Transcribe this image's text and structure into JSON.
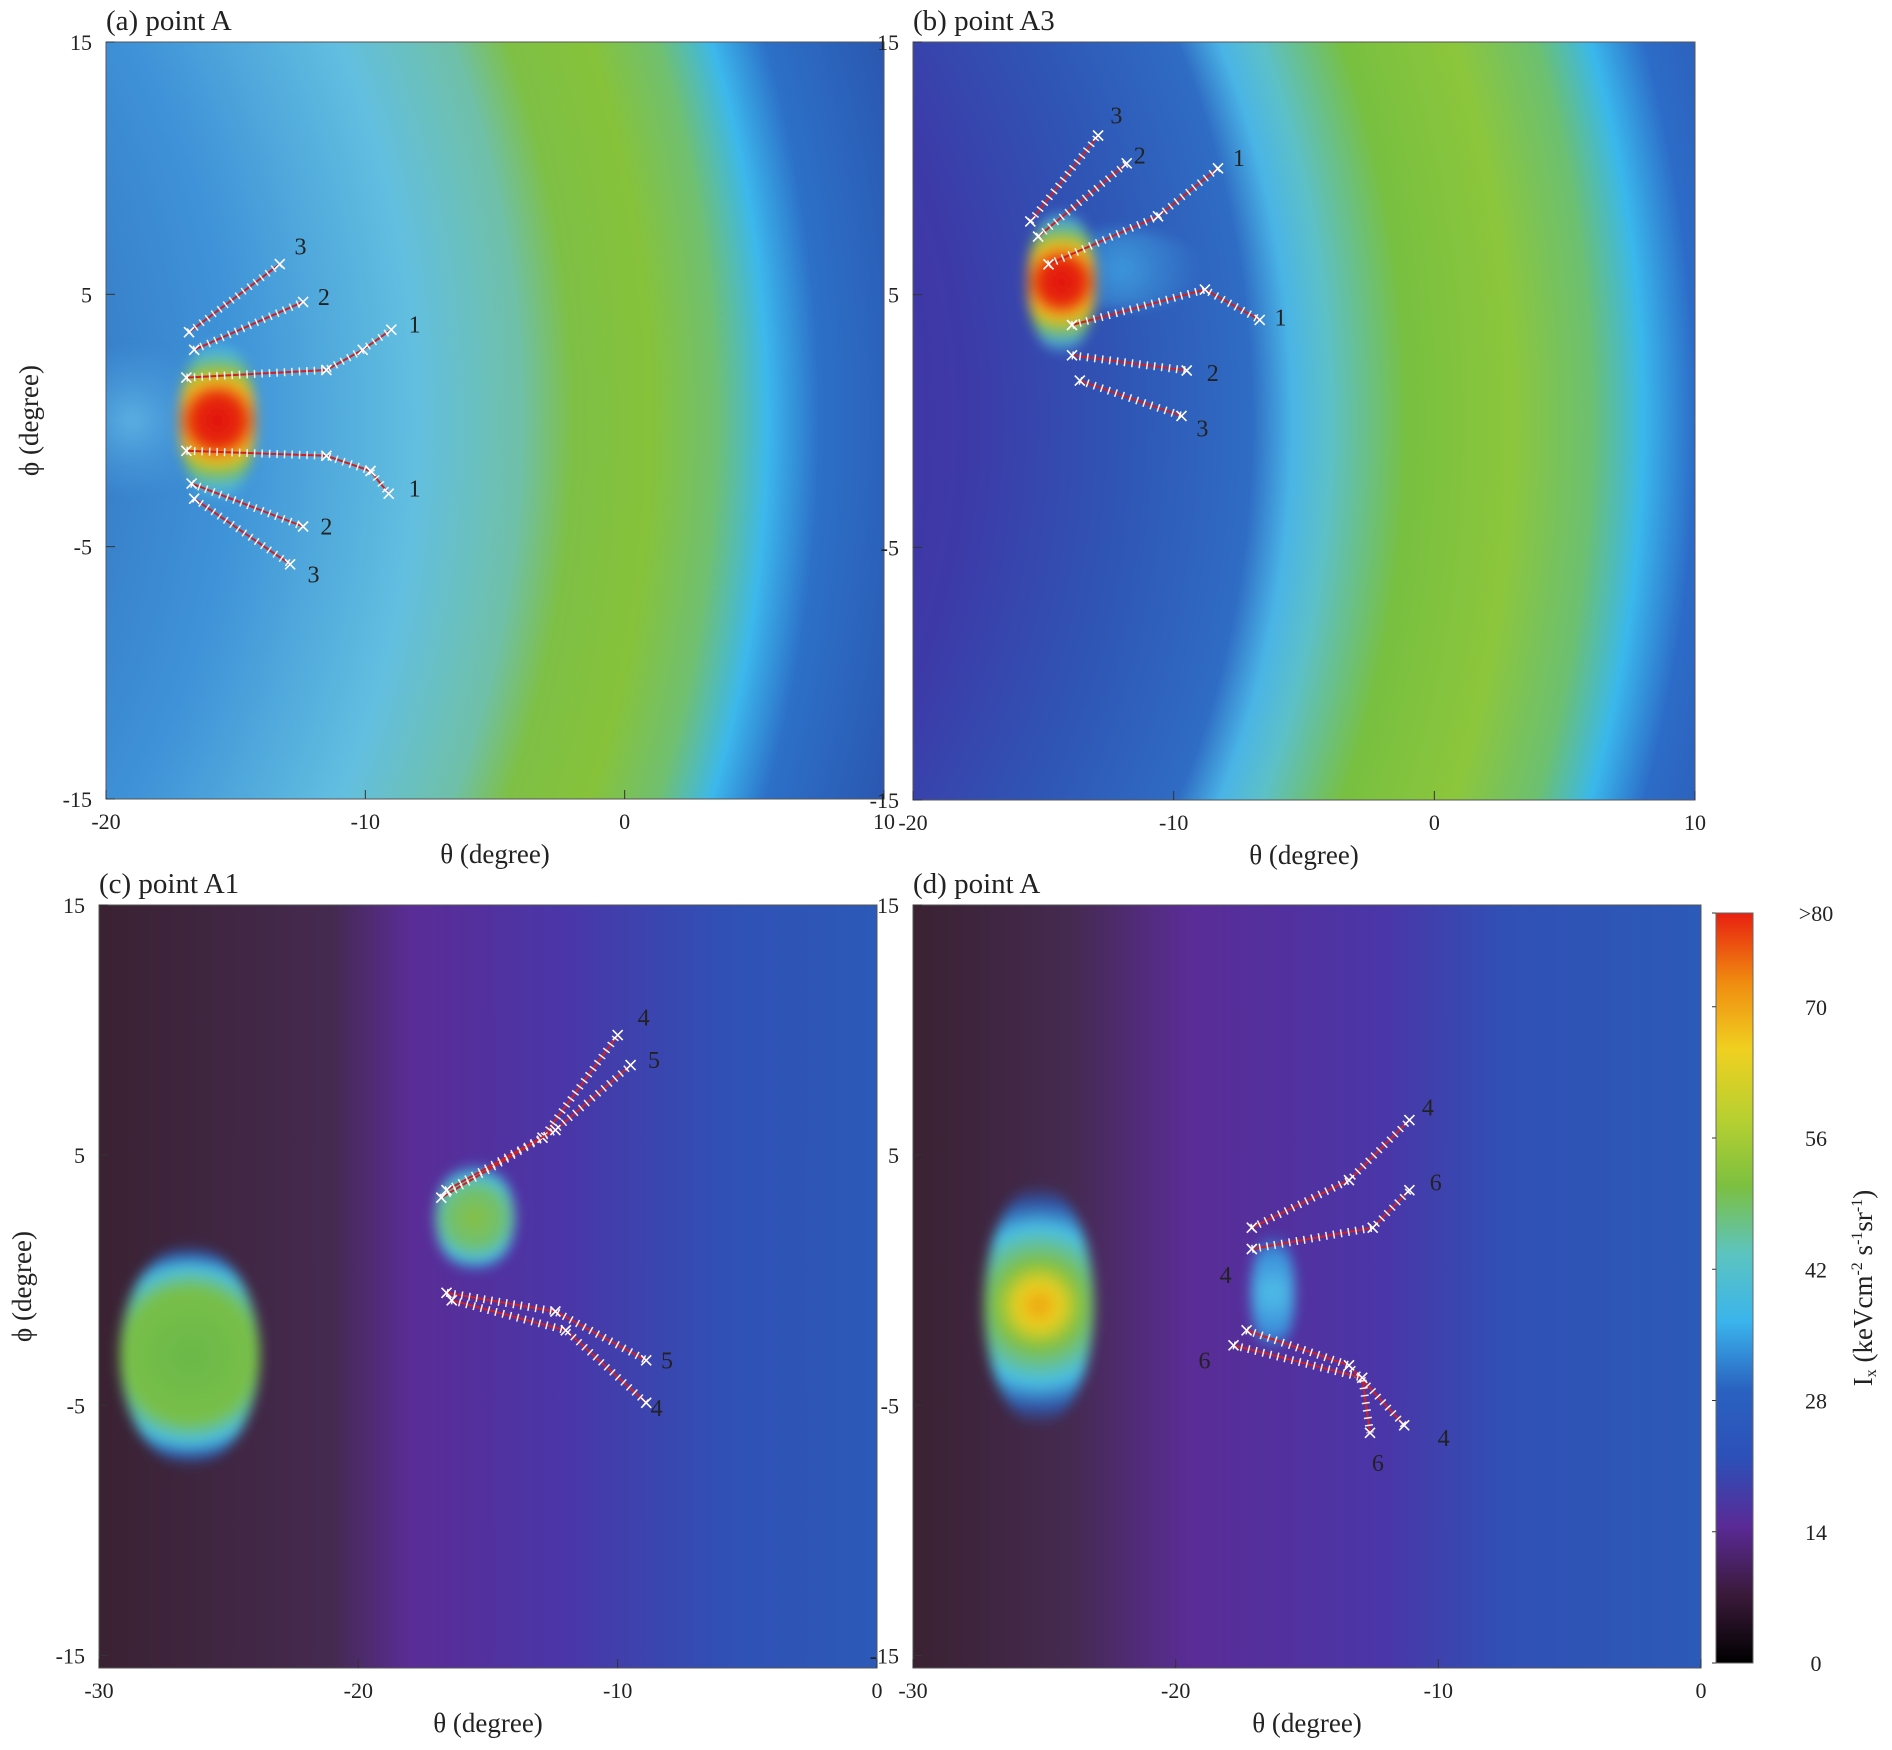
{
  "chart_data": [
    {
      "type": "heatmap",
      "title": "(a) point A",
      "xlabel": "θ (degree)",
      "ylabel": "ϕ (degree)",
      "xlim": [
        -20,
        10
      ],
      "ylim": [
        -15,
        15
      ],
      "xticks": [
        -20,
        -10,
        0,
        10
      ],
      "yticks": [
        -15,
        -5,
        5,
        15
      ],
      "trajectories": [
        {
          "x": [
            -16.8,
            -13.3
          ],
          "y": [
            3.5,
            6.2
          ]
        },
        {
          "x": [
            -16.6,
            -12.4
          ],
          "y": [
            2.8,
            4.7
          ]
        },
        {
          "x": [
            -16.9,
            -11.5,
            -10.1,
            -9.0
          ],
          "y": [
            1.7,
            2.0,
            2.8,
            3.6
          ]
        },
        {
          "x": [
            -16.9,
            -11.5,
            -9.8,
            -9.1
          ],
          "y": [
            -1.2,
            -1.4,
            -2.0,
            -2.9
          ]
        },
        {
          "x": [
            -16.7,
            -12.4
          ],
          "y": [
            -2.5,
            -4.2
          ]
        },
        {
          "x": [
            -16.6,
            -12.9
          ],
          "y": [
            -3.1,
            -5.7
          ]
        }
      ],
      "annotations": [
        {
          "text": "3",
          "x": -12.5,
          "y": 6.9
        },
        {
          "text": "2",
          "x": -11.6,
          "y": 4.9
        },
        {
          "text": "1",
          "x": -8.1,
          "y": 3.8
        },
        {
          "text": "1",
          "x": -8.1,
          "y": -2.7
        },
        {
          "text": "2",
          "x": -11.5,
          "y": -4.2
        },
        {
          "text": "3",
          "x": -12.0,
          "y": -6.1
        }
      ]
    },
    {
      "type": "heatmap",
      "title": "(b) point A3",
      "xlabel": "θ (degree)",
      "xlim": [
        -20,
        10
      ],
      "ylim": [
        -15,
        15
      ],
      "xticks": [
        -20,
        -10,
        0,
        10
      ],
      "yticks": [
        -15,
        -5,
        5,
        15
      ],
      "trajectories": [
        {
          "x": [
            -15.5,
            -12.9
          ],
          "y": [
            7.9,
            11.3
          ]
        },
        {
          "x": [
            -15.2,
            -11.8
          ],
          "y": [
            7.3,
            10.2
          ]
        },
        {
          "x": [
            -14.8,
            -10.6,
            -8.3
          ],
          "y": [
            6.2,
            8.1,
            10.0
          ]
        },
        {
          "x": [
            -13.9,
            -8.8,
            -6.7
          ],
          "y": [
            3.8,
            5.2,
            4.0
          ]
        },
        {
          "x": [
            -13.9,
            -9.5
          ],
          "y": [
            2.6,
            2.0
          ]
        },
        {
          "x": [
            -13.6,
            -9.7
          ],
          "y": [
            1.6,
            0.2
          ]
        }
      ],
      "annotations": [
        {
          "text": "3",
          "x": -12.2,
          "y": 12.1
        },
        {
          "text": "2",
          "x": -11.3,
          "y": 10.5
        },
        {
          "text": "1",
          "x": -7.5,
          "y": 10.4
        },
        {
          "text": "1",
          "x": -5.9,
          "y": 4.1
        },
        {
          "text": "2",
          "x": -8.5,
          "y": 1.9
        },
        {
          "text": "3",
          "x": -8.9,
          "y": -0.3
        }
      ]
    },
    {
      "type": "heatmap",
      "title": "(c) point A1",
      "xlabel": "θ (degree)",
      "ylabel": "ϕ (degree)",
      "xlim": [
        -30,
        0
      ],
      "ylim": [
        -15.5,
        15
      ],
      "xticks": [
        -30,
        -20,
        -10,
        0
      ],
      "yticks": [
        -15,
        -5,
        5,
        15
      ],
      "trajectories": [
        {
          "x": [
            -16.8,
            -12.9,
            -10.0
          ],
          "y": [
            3.3,
            5.7,
            9.8
          ]
        },
        {
          "x": [
            -16.6,
            -12.4,
            -9.5
          ],
          "y": [
            3.6,
            6.0,
            8.6
          ]
        },
        {
          "x": [
            -16.6,
            -12.4,
            -8.9
          ],
          "y": [
            -0.5,
            -1.25,
            -3.2
          ]
        },
        {
          "x": [
            -16.4,
            -12.0,
            -8.9
          ],
          "y": [
            -0.8,
            -2.0,
            -4.9
          ]
        }
      ],
      "annotations": [
        {
          "text": "4",
          "x": -9.0,
          "y": 10.5
        },
        {
          "text": "5",
          "x": -8.6,
          "y": 8.8
        },
        {
          "text": "5",
          "x": -8.1,
          "y": -3.2
        },
        {
          "text": "4",
          "x": -8.5,
          "y": -5.1
        }
      ]
    },
    {
      "type": "heatmap",
      "title": "(d) point A",
      "xlabel": "θ (degree)",
      "xlim": [
        -30,
        0
      ],
      "ylim": [
        -15.5,
        15
      ],
      "xticks": [
        -30,
        -20,
        -10,
        0
      ],
      "yticks": [
        -15,
        -5,
        5,
        15
      ],
      "trajectories": [
        {
          "x": [
            -17.1,
            -13.4,
            -11.1
          ],
          "y": [
            2.1,
            4.0,
            6.4
          ]
        },
        {
          "x": [
            -17.1,
            -12.5,
            -11.1
          ],
          "y": [
            1.25,
            2.1,
            3.6
          ]
        },
        {
          "x": [
            -17.3,
            -13.4,
            -11.3
          ],
          "y": [
            -2.0,
            -3.4,
            -5.8
          ]
        },
        {
          "x": [
            -17.8,
            -12.9,
            -12.6
          ],
          "y": [
            -2.6,
            -3.9,
            -6.1
          ]
        }
      ],
      "annotations": [
        {
          "text": "4",
          "x": -10.4,
          "y": 6.9
        },
        {
          "text": "6",
          "x": -10.1,
          "y": 3.9
        },
        {
          "text": "4",
          "x": -18.1,
          "y": 0.2
        },
        {
          "text": "6",
          "x": -18.9,
          "y": -3.2
        },
        {
          "text": "4",
          "x": -9.8,
          "y": -6.3
        },
        {
          "text": "6",
          "x": -12.3,
          "y": -7.3
        }
      ],
      "colorbar": {
        "lim": [
          0,
          80
        ],
        "ticks": [
          0,
          14,
          28,
          42,
          56,
          70,
          {
            "value": 80,
            "label": ">80"
          }
        ],
        "colormap": [
          "#000000",
          "#3a1a3a",
          "#5a2a96",
          "#2c50b8",
          "#2a62c0",
          "#3ab4ec",
          "#5cc4c0",
          "#7cc040",
          "#b8d030",
          "#f0d020",
          "#f08a10",
          "#e82010"
        ],
        "label_parts": [
          {
            "text": "I",
            "shift": "base"
          },
          {
            "text": "x",
            "shift": "sub"
          },
          {
            "text": " (keVcm",
            "shift": "base"
          },
          {
            "text": "-2",
            "shift": "sup"
          },
          {
            "text": " s",
            "shift": "base"
          },
          {
            "text": "-1",
            "shift": "sup"
          },
          {
            "text": "sr",
            "shift": "base"
          },
          {
            "text": "-1",
            "shift": "sup"
          },
          {
            "text": ")",
            "shift": "base"
          }
        ]
      }
    }
  ]
}
